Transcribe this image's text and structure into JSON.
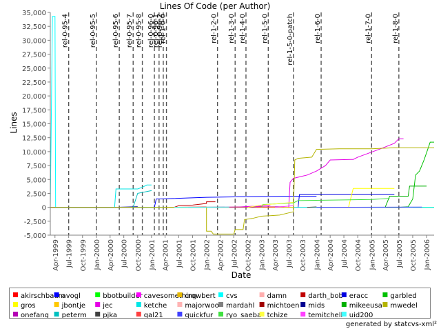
{
  "chart_data": {
    "type": "line",
    "title": "Lines Of Code (per Author)",
    "xlabel": "Date",
    "ylabel": "Lines",
    "ylim": [
      -5000,
      35000
    ],
    "y_ticks": [
      "-5,000",
      "-2,500",
      "0",
      "2,500",
      "5,000",
      "7,500",
      "10,000",
      "12,500",
      "15,000",
      "17,500",
      "20,000",
      "22,500",
      "25,000",
      "27,500",
      "30,000",
      "32,500",
      "35,000"
    ],
    "x_ticks": [
      "Apr-1999",
      "Jul-1999",
      "Oct-1999",
      "Jan-2000",
      "Apr-2000",
      "Jul-2000",
      "Oct-2000",
      "Jan-2001",
      "Apr-2001",
      "Jul-2001",
      "Oct-2001",
      "Jan-2002",
      "Apr-2002",
      "Jul-2002",
      "Oct-2002",
      "Jan-2003",
      "Apr-2003",
      "Jul-2003",
      "Oct-2003",
      "Jan-2004",
      "Apr-2004",
      "Jul-2004",
      "Oct-2004",
      "Jan-2005",
      "Apr-2005",
      "Jul-2005",
      "Oct-2005",
      "Jan-2006"
    ],
    "grid": false,
    "legend_position": "bottom",
    "markers": [
      {
        "label": "rel-0-95-4",
        "x": "1999-07-01"
      },
      {
        "label": "rel-0-95-5",
        "x": "2000-01-01"
      },
      {
        "label": "rel-0-95-6",
        "x": "2000-06-01"
      },
      {
        "label": "rel-0-95-7",
        "x": "2000-09-01"
      },
      {
        "label": "rel-0-95-8",
        "x": "2000-11-01"
      },
      {
        "label": "rel-0-96-0",
        "x": "2001-01-20"
      },
      {
        "label": "rel-0-96-1",
        "x": "2001-02-20"
      },
      {
        "label": "rel-0-96-2",
        "x": "2001-03-20"
      },
      {
        "label": "rel-1-0-0",
        "x": "2001-04-10"
      },
      {
        "label": "rel-1-2-0",
        "x": "2002-03-15"
      },
      {
        "label": "rel-1-3-0",
        "x": "2002-07-10"
      },
      {
        "label": "rel-1-4-0",
        "x": "2002-09-20"
      },
      {
        "label": "rel-1-5-0",
        "x": "2003-02-15"
      },
      {
        "label": "rel-1-5-0-patch",
        "x": "2003-08-01"
      },
      {
        "label": "rel-1-6-0",
        "x": "2004-02-01"
      },
      {
        "label": "rel-1-7-0",
        "x": "2005-01-01"
      },
      {
        "label": "rel-1-8-0",
        "x": "2005-07-01"
      }
    ],
    "series": [
      {
        "name": "akirschbaum",
        "color": "#ff0000",
        "points": [
          [
            "1999-03-01",
            0
          ],
          [
            "2006-02-20",
            0
          ]
        ]
      },
      {
        "name": "avogl",
        "color": "#0000ff",
        "points": [
          [
            "1999-03-01",
            0
          ],
          [
            "2001-01-20",
            0
          ],
          [
            "2001-02-01",
            1500
          ],
          [
            "2001-03-01",
            1500
          ],
          [
            "2002-01-01",
            1800
          ],
          [
            "2003-06-01",
            2000
          ],
          [
            "2004-01-01",
            2000
          ]
        ]
      },
      {
        "name": "bbotbuilder",
        "color": "#00ff00",
        "points": [
          [
            "2005-10-01",
            0
          ],
          [
            "2006-02-20",
            0
          ]
        ]
      },
      {
        "name": "cavesomething",
        "color": "#ff00ff",
        "points": [
          [
            "2002-07-01",
            0
          ],
          [
            "2002-10-01",
            150
          ],
          [
            "2003-03-01",
            300
          ]
        ]
      },
      {
        "name": "crowbert",
        "color": "#e6b800",
        "points": [
          [
            "2002-03-01",
            0
          ],
          [
            "2002-06-01",
            0
          ],
          [
            "2002-09-01",
            50
          ]
        ]
      },
      {
        "name": "cvs",
        "color": "#00ffff",
        "points": [
          [
            "1999-03-01",
            0
          ],
          [
            "1999-03-15",
            34300
          ],
          [
            "1999-04-01",
            34300
          ],
          [
            "1999-04-05",
            0
          ],
          [
            "2006-02-20",
            0
          ]
        ]
      },
      {
        "name": "damn",
        "color": "#ffafaf",
        "points": [
          [
            "2001-06-01",
            0
          ],
          [
            "2002-01-01",
            150
          ]
        ]
      },
      {
        "name": "darth_bob",
        "color": "#c00000",
        "points": [
          [
            "2001-06-01",
            0
          ],
          [
            "2001-07-01",
            300
          ],
          [
            "2001-10-01",
            400
          ],
          [
            "2002-01-01",
            700
          ],
          [
            "2002-01-01",
            1000
          ],
          [
            "2002-03-01",
            1000
          ]
        ]
      },
      {
        "name": "eracc",
        "color": "#0000e0",
        "points": [
          [
            "2003-09-01",
            0
          ],
          [
            "2003-09-10",
            2300
          ],
          [
            "2004-01-01",
            2300
          ],
          [
            "2005-01-01",
            2300
          ],
          [
            "2005-06-01",
            2300
          ]
        ]
      },
      {
        "name": "garbled",
        "color": "#00c000",
        "points": [
          [
            "2005-04-01",
            0
          ],
          [
            "2005-07-01",
            0
          ],
          [
            "2005-09-01",
            100
          ],
          [
            "2005-10-01",
            1500
          ],
          [
            "2005-10-20",
            5800
          ],
          [
            "2005-11-15",
            6500
          ],
          [
            "2005-12-15",
            8500
          ],
          [
            "2006-01-10",
            10500
          ],
          [
            "2006-01-25",
            11700
          ],
          [
            "2006-02-20",
            11700
          ]
        ]
      },
      {
        "name": "gros",
        "color": "#ffff00",
        "points": [
          [
            "2004-08-01",
            0
          ],
          [
            "2004-09-01",
            3400
          ],
          [
            "2005-06-01",
            3400
          ]
        ]
      },
      {
        "name": "jbontje",
        "color": "#ffc800",
        "points": [
          [
            "2001-04-01",
            0
          ],
          [
            "2003-08-01",
            0
          ]
        ]
      },
      {
        "name": "jec",
        "color": "#e600e6",
        "points": [
          [
            "2003-07-01",
            0
          ],
          [
            "2003-07-10",
            4500
          ],
          [
            "2003-08-01",
            5200
          ],
          [
            "2003-11-01",
            5800
          ],
          [
            "2004-01-01",
            6500
          ],
          [
            "2004-03-01",
            7500
          ],
          [
            "2004-04-01",
            8500
          ],
          [
            "2004-09-01",
            8600
          ],
          [
            "2004-10-01",
            9000
          ],
          [
            "2005-03-01",
            10500
          ],
          [
            "2005-06-01",
            11500
          ],
          [
            "2005-07-01",
            12300
          ],
          [
            "2005-08-01",
            12300
          ]
        ]
      },
      {
        "name": "ketche",
        "color": "#00e6e6",
        "points": [
          [
            "2000-05-01",
            0
          ],
          [
            "2000-05-10",
            3300
          ],
          [
            "2000-10-01",
            3300
          ],
          [
            "2000-11-01",
            3600
          ],
          [
            "2000-12-01",
            4000
          ],
          [
            "2001-01-01",
            4000
          ]
        ]
      },
      {
        "name": "majorwoo",
        "color": "#ffb4b4",
        "points": [
          [
            "2002-04-01",
            0
          ],
          [
            "2002-08-01",
            100
          ]
        ]
      },
      {
        "name": "mardahl",
        "color": "#808080",
        "points": [
          [
            "2001-05-01",
            0
          ],
          [
            "2002-05-01",
            50
          ]
        ]
      },
      {
        "name": "michtoen",
        "color": "#a00000",
        "points": [
          [
            "2002-10-01",
            0
          ],
          [
            "2003-01-01",
            100
          ]
        ]
      },
      {
        "name": "mids",
        "color": "#000090",
        "points": [
          [
            "1999-03-01",
            0
          ],
          [
            "2000-05-01",
            0
          ],
          [
            "2000-10-01",
            100
          ]
        ]
      },
      {
        "name": "mikeeusa",
        "color": "#00b000",
        "points": [
          [
            "2005-04-01",
            0
          ],
          [
            "2005-05-01",
            2000
          ],
          [
            "2005-09-01",
            2000
          ],
          [
            "2005-09-10",
            3800
          ],
          [
            "2006-01-01",
            3800
          ]
        ]
      },
      {
        "name": "mwedel",
        "color": "#b4b400",
        "points": [
          [
            "1999-03-01",
            0
          ],
          [
            "2001-09-01",
            0
          ],
          [
            "2002-01-01",
            0
          ],
          [
            "2002-01-01",
            -4300
          ],
          [
            "2002-02-01",
            -4300
          ],
          [
            "2002-02-15",
            -4800
          ],
          [
            "2002-07-01",
            -4800
          ],
          [
            "2002-07-10",
            -4000
          ],
          [
            "2002-09-01",
            -4000
          ],
          [
            "2002-09-10",
            -2200
          ],
          [
            "2002-11-01",
            -2000
          ],
          [
            "2003-01-01",
            -1600
          ],
          [
            "2003-03-01",
            -1500
          ],
          [
            "2003-05-01",
            -1400
          ],
          [
            "2003-07-01",
            -1000
          ],
          [
            "2003-08-01",
            -800
          ],
          [
            "2003-08-10",
            8500
          ],
          [
            "2003-09-01",
            8800
          ],
          [
            "2003-12-01",
            9000
          ],
          [
            "2004-01-01",
            10400
          ],
          [
            "2004-06-01",
            10500
          ],
          [
            "2005-01-01",
            10500
          ],
          [
            "2005-06-01",
            10700
          ],
          [
            "2006-02-20",
            10700
          ]
        ]
      },
      {
        "name": "onefang",
        "color": "#b400b4",
        "points": [
          [
            "2001-09-01",
            0
          ],
          [
            "2003-06-01",
            100
          ]
        ]
      },
      {
        "name": "peterm",
        "color": "#00c0c0",
        "points": [
          [
            "2000-09-01",
            0
          ],
          [
            "2000-10-01",
            2500
          ],
          [
            "2001-01-01",
            3000
          ]
        ]
      },
      {
        "name": "pjka",
        "color": "#404040",
        "points": [
          [
            "2003-11-01",
            0
          ],
          [
            "2004-01-01",
            80
          ]
        ]
      },
      {
        "name": "qal21",
        "color": "#ff4040",
        "points": [
          [
            "2002-12-01",
            0
          ],
          [
            "2003-04-01",
            60
          ]
        ]
      },
      {
        "name": "quickfur",
        "color": "#4040ff",
        "points": [
          [
            "2004-01-01",
            0
          ],
          [
            "2005-12-01",
            50
          ]
        ]
      },
      {
        "name": "ryo_saeba",
        "color": "#40e040",
        "points": [
          [
            "2003-01-01",
            0
          ],
          [
            "2003-01-10",
            500
          ],
          [
            "2003-08-01",
            800
          ],
          [
            "2003-09-01",
            1200
          ],
          [
            "2005-01-01",
            1400
          ],
          [
            "2005-05-01",
            1600
          ]
        ]
      },
      {
        "name": "tchize",
        "color": "#ffff40",
        "points": [
          [
            "2002-10-01",
            0
          ],
          [
            "2003-01-01",
            400
          ],
          [
            "2003-08-01",
            900
          ]
        ]
      },
      {
        "name": "temitchell",
        "color": "#ff40ff",
        "points": [
          [
            "2003-04-01",
            0
          ],
          [
            "2003-08-01",
            300
          ]
        ]
      },
      {
        "name": "uid200",
        "color": "#40ffff",
        "points": [
          [
            "2001-06-01",
            0
          ],
          [
            "2002-06-01",
            50
          ]
        ]
      }
    ]
  },
  "footer": {
    "generated_by": "generated by statcvs-xml²"
  }
}
